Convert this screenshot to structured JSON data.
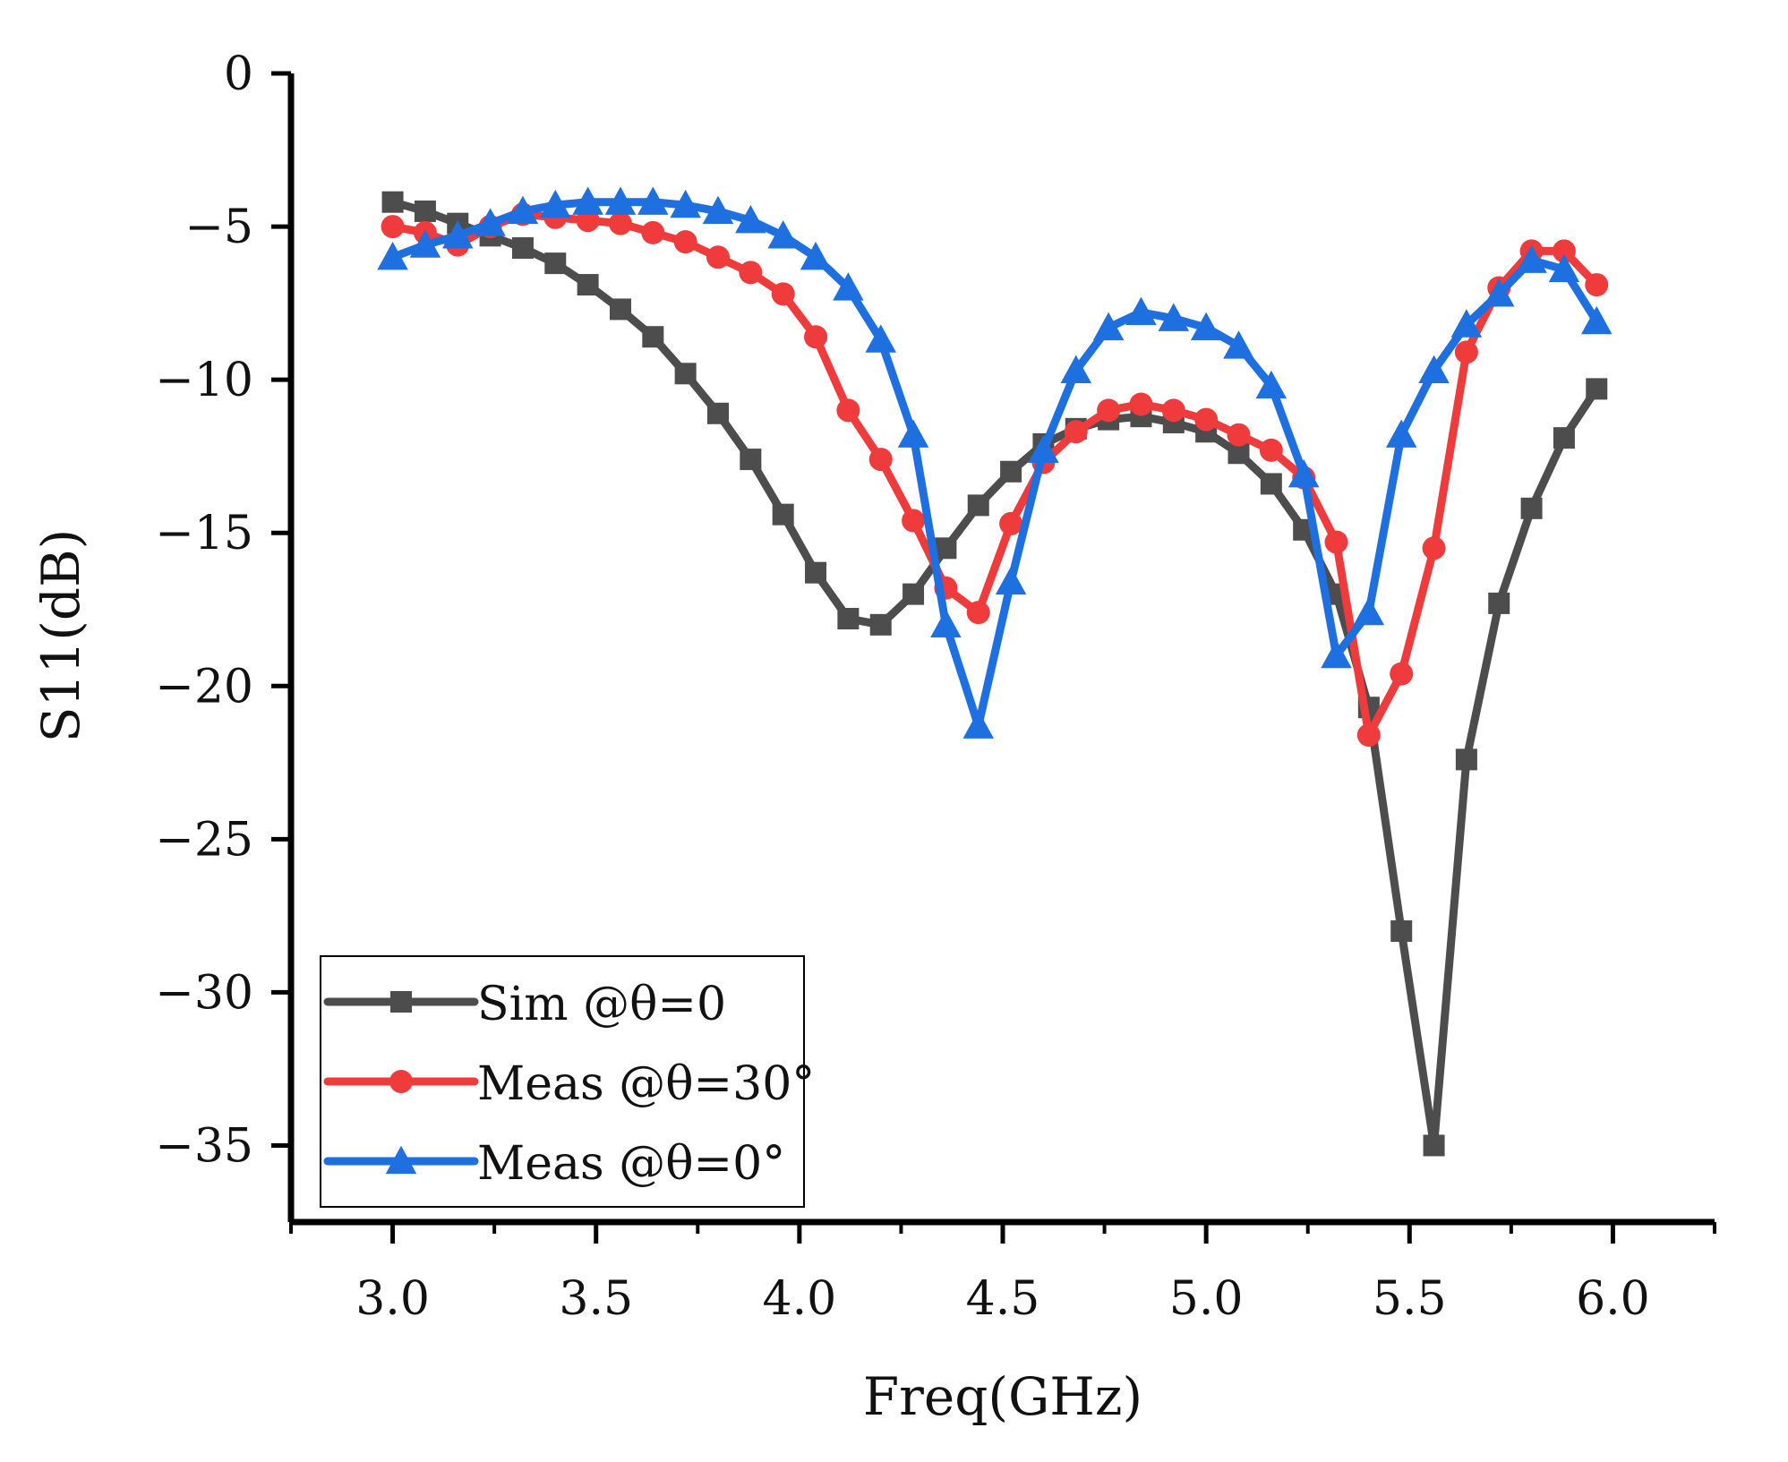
{
  "chart_data": {
    "type": "line",
    "xlabel": "Freq(GHz)",
    "ylabel": "S11(dB)",
    "xlim": [
      2.75,
      6.25
    ],
    "ylim": [
      -37.5,
      0
    ],
    "xticks": [
      3.0,
      3.5,
      4.0,
      4.5,
      5.0,
      5.5,
      6.0
    ],
    "xtick_labels": [
      "3.0",
      "3.5",
      "4.0",
      "4.5",
      "5.0",
      "5.5",
      "6.0"
    ],
    "yticks": [
      0,
      -5,
      -10,
      -15,
      -20,
      -25,
      -30,
      -35
    ],
    "ytick_labels": [
      "0",
      "−5",
      "−10",
      "−15",
      "−20",
      "−25",
      "−30",
      "−35"
    ],
    "grid": false,
    "legend": "bottom-left",
    "series": [
      {
        "name": "Sim  @θ=0",
        "color": "#4d4d4d",
        "marker": "square",
        "x": [
          3.0,
          3.08,
          3.16,
          3.24,
          3.32,
          3.4,
          3.48,
          3.56,
          3.64,
          3.72,
          3.8,
          3.88,
          3.96,
          4.04,
          4.12,
          4.2,
          4.28,
          4.36,
          4.44,
          4.52,
          4.6,
          4.68,
          4.76,
          4.84,
          4.92,
          5.0,
          5.08,
          5.16,
          5.24,
          5.32,
          5.4,
          5.48,
          5.56,
          5.64,
          5.72,
          5.8,
          5.88,
          5.96
        ],
        "values": [
          -4.2,
          -4.5,
          -4.9,
          -5.3,
          -5.7,
          -6.2,
          -6.9,
          -7.7,
          -8.6,
          -9.8,
          -11.1,
          -12.6,
          -14.4,
          -16.3,
          -17.8,
          -18.0,
          -17.0,
          -15.5,
          -14.1,
          -13.0,
          -12.1,
          -11.6,
          -11.3,
          -11.2,
          -11.4,
          -11.7,
          -12.4,
          -13.4,
          -14.9,
          -17.0,
          -20.7,
          -28.0,
          -35.0,
          -22.4,
          -17.3,
          -14.2,
          -11.9,
          -10.3
        ]
      },
      {
        "name": "Meas @θ=30°",
        "color": "#ef3b3b",
        "marker": "circle",
        "x": [
          3.0,
          3.08,
          3.16,
          3.24,
          3.32,
          3.4,
          3.48,
          3.56,
          3.64,
          3.72,
          3.8,
          3.88,
          3.96,
          4.04,
          4.12,
          4.2,
          4.28,
          4.36,
          4.44,
          4.52,
          4.6,
          4.68,
          4.76,
          4.84,
          4.92,
          5.0,
          5.08,
          5.16,
          5.24,
          5.32,
          5.4,
          5.48,
          5.56,
          5.64,
          5.72,
          5.8,
          5.88,
          5.96
        ],
        "values": [
          -5.0,
          -5.2,
          -5.6,
          -5.0,
          -4.6,
          -4.7,
          -4.8,
          -4.9,
          -5.2,
          -5.5,
          -6.0,
          -6.5,
          -7.2,
          -8.6,
          -11.0,
          -12.6,
          -14.6,
          -16.8,
          -17.6,
          -14.7,
          -12.7,
          -11.7,
          -11.0,
          -10.8,
          -11.0,
          -11.3,
          -11.8,
          -12.3,
          -13.2,
          -15.3,
          -21.6,
          -19.6,
          -15.5,
          -9.1,
          -7.0,
          -5.8,
          -5.8,
          -6.9
        ]
      },
      {
        "name": "Meas @θ=0°",
        "color": "#1e6fe0",
        "marker": "triangle",
        "x": [
          3.0,
          3.08,
          3.16,
          3.24,
          3.32,
          3.4,
          3.48,
          3.56,
          3.64,
          3.72,
          3.8,
          3.88,
          3.96,
          4.04,
          4.12,
          4.2,
          4.28,
          4.36,
          4.44,
          4.52,
          4.6,
          4.68,
          4.76,
          4.84,
          4.92,
          5.0,
          5.08,
          5.16,
          5.24,
          5.32,
          5.4,
          5.48,
          5.56,
          5.64,
          5.72,
          5.8,
          5.88,
          5.96
        ],
        "values": [
          -6.0,
          -5.6,
          -5.3,
          -4.9,
          -4.5,
          -4.3,
          -4.2,
          -4.2,
          -4.2,
          -4.3,
          -4.5,
          -4.8,
          -5.3,
          -6.0,
          -7.0,
          -8.7,
          -11.8,
          -18.0,
          -21.3,
          -16.6,
          -12.3,
          -9.7,
          -8.3,
          -7.8,
          -8.0,
          -8.3,
          -8.9,
          -10.2,
          -13.1,
          -19.0,
          -17.6,
          -11.8,
          -9.7,
          -8.2,
          -7.2,
          -6.1,
          -6.4,
          -8.1
        ]
      }
    ]
  }
}
